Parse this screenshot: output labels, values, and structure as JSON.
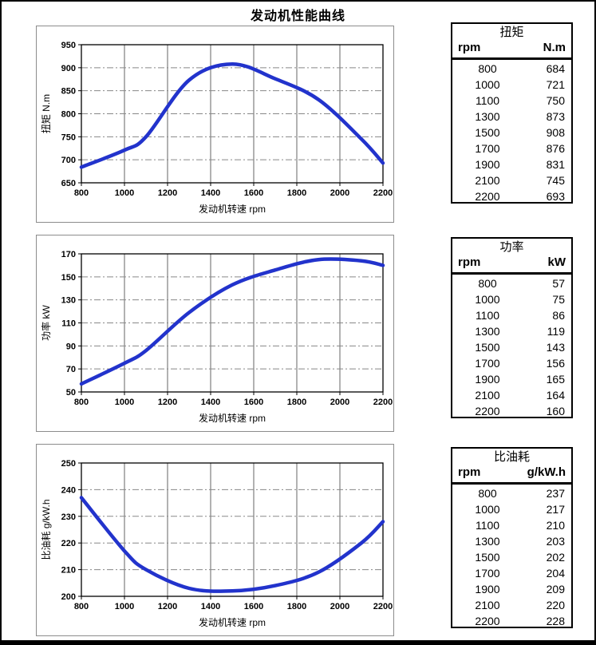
{
  "page": {
    "title": "发动机性能曲线"
  },
  "chart_data": [
    {
      "id": "torque",
      "type": "line",
      "title": "扭矩",
      "x": [
        800,
        1000,
        1100,
        1300,
        1500,
        1700,
        1900,
        2100,
        2200
      ],
      "values": [
        684,
        721,
        750,
        873,
        908,
        876,
        831,
        745,
        693
      ],
      "xlabel": "发动机转速 rpm",
      "ylabel": "扭矩 N.m",
      "xlim": [
        800,
        2200
      ],
      "ylim": [
        650,
        950
      ],
      "xticks": [
        800,
        1000,
        1200,
        1400,
        1600,
        1800,
        2000,
        2200
      ],
      "yticks": [
        650,
        700,
        750,
        800,
        850,
        900,
        950
      ],
      "line_color": "#2233cc",
      "grid": "on",
      "legend": "none"
    },
    {
      "id": "power",
      "type": "line",
      "title": "功率",
      "x": [
        800,
        1000,
        1100,
        1300,
        1500,
        1700,
        1900,
        2100,
        2200
      ],
      "values": [
        57,
        75,
        86,
        119,
        143,
        156,
        165,
        164,
        160
      ],
      "xlabel": "发动机转速 rpm",
      "ylabel": "功率 kW",
      "xlim": [
        800,
        2200
      ],
      "ylim": [
        50,
        170
      ],
      "xticks": [
        800,
        1000,
        1200,
        1400,
        1600,
        1800,
        2000,
        2200
      ],
      "yticks": [
        50,
        70,
        90,
        110,
        130,
        150,
        170
      ],
      "line_color": "#2233cc",
      "grid": "on",
      "legend": "none"
    },
    {
      "id": "sfc",
      "type": "line",
      "title": "比油耗",
      "x": [
        800,
        1000,
        1100,
        1300,
        1500,
        1700,
        1900,
        2100,
        2200
      ],
      "values": [
        237,
        217,
        210,
        203,
        202,
        204,
        209,
        220,
        228
      ],
      "xlabel": "发动机转速 rpm",
      "ylabel": "比油耗 g/kW.h",
      "xlim": [
        800,
        2200
      ],
      "ylim": [
        200,
        250
      ],
      "xticks": [
        800,
        1000,
        1200,
        1400,
        1600,
        1800,
        2000,
        2200
      ],
      "yticks": [
        200,
        210,
        220,
        230,
        240,
        250
      ],
      "line_color": "#2233cc",
      "grid": "on",
      "legend": "none"
    }
  ],
  "tables": [
    {
      "title": "扭矩",
      "col1": "rpm",
      "col2": "N.m",
      "rows": [
        [
          800,
          684
        ],
        [
          1000,
          721
        ],
        [
          1100,
          750
        ],
        [
          1300,
          873
        ],
        [
          1500,
          908
        ],
        [
          1700,
          876
        ],
        [
          1900,
          831
        ],
        [
          2100,
          745
        ],
        [
          2200,
          693
        ]
      ]
    },
    {
      "title": "功率",
      "col1": "rpm",
      "col2": "kW",
      "rows": [
        [
          800,
          57
        ],
        [
          1000,
          75
        ],
        [
          1100,
          86
        ],
        [
          1300,
          119
        ],
        [
          1500,
          143
        ],
        [
          1700,
          156
        ],
        [
          1900,
          165
        ],
        [
          2100,
          164
        ],
        [
          2200,
          160
        ]
      ]
    },
    {
      "title": "比油耗",
      "col1": "rpm",
      "col2": "g/kW.h",
      "rows": [
        [
          800,
          237
        ],
        [
          1000,
          217
        ],
        [
          1100,
          210
        ],
        [
          1300,
          203
        ],
        [
          1500,
          202
        ],
        [
          1700,
          204
        ],
        [
          1900,
          209
        ],
        [
          2100,
          220
        ],
        [
          2200,
          228
        ]
      ]
    }
  ]
}
